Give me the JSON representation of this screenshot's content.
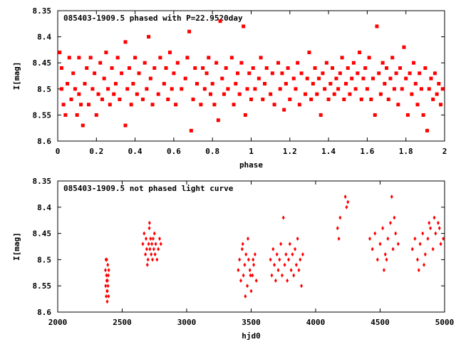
{
  "colors": {
    "points": "#ff0000",
    "axes": "#000000",
    "background": "#ffffff"
  },
  "chart_data": [
    {
      "type": "scatter",
      "title": "085403-1909.5 phased with P=22.9520day",
      "xlabel": "phase",
      "ylabel": "I[mag]",
      "xlim": [
        0,
        2
      ],
      "ylim": [
        8.35,
        8.6
      ],
      "y_inverted": true,
      "x_ticks": [
        0,
        0.2,
        0.4,
        0.6,
        0.8,
        1,
        1.2,
        1.4,
        1.6,
        1.8,
        2
      ],
      "x_tick_labels": [
        "0",
        "0.2",
        "0.4",
        "0.6",
        "0.8",
        "1",
        "1.2",
        "1.4",
        "1.6",
        "1.8",
        "2"
      ],
      "y_ticks": [
        8.35,
        8.4,
        8.45,
        8.5,
        8.55,
        8.6
      ],
      "y_tick_labels": [
        "8.35",
        "8.4",
        "8.45",
        "8.5",
        "8.55",
        "8.6"
      ],
      "grid": false,
      "marker": "filled-square",
      "points": [
        [
          0.01,
          8.43
        ],
        [
          0.02,
          8.46
        ],
        [
          0.02,
          8.5
        ],
        [
          0.03,
          8.53
        ],
        [
          0.04,
          8.55
        ],
        [
          0.05,
          8.49
        ],
        [
          0.06,
          8.44
        ],
        [
          0.07,
          8.52
        ],
        [
          0.08,
          8.47
        ],
        [
          0.09,
          8.5
        ],
        [
          0.1,
          8.55
        ],
        [
          0.11,
          8.44
        ],
        [
          0.11,
          8.51
        ],
        [
          0.12,
          8.53
        ],
        [
          0.13,
          8.57
        ],
        [
          0.14,
          8.49
        ],
        [
          0.15,
          8.46
        ],
        [
          0.16,
          8.53
        ],
        [
          0.17,
          8.44
        ],
        [
          0.18,
          8.5
        ],
        [
          0.19,
          8.47
        ],
        [
          0.2,
          8.55
        ],
        [
          0.21,
          8.51
        ],
        [
          0.22,
          8.45
        ],
        [
          0.23,
          8.52
        ],
        [
          0.24,
          8.48
        ],
        [
          0.25,
          8.43
        ],
        [
          0.26,
          8.5
        ],
        [
          0.27,
          8.53
        ],
        [
          0.28,
          8.46
        ],
        [
          0.29,
          8.51
        ],
        [
          0.3,
          8.49
        ],
        [
          0.31,
          8.44
        ],
        [
          0.32,
          8.52
        ],
        [
          0.33,
          8.47
        ],
        [
          0.35,
          8.41
        ],
        [
          0.35,
          8.57
        ],
        [
          0.36,
          8.5
        ],
        [
          0.37,
          8.46
        ],
        [
          0.38,
          8.53
        ],
        [
          0.39,
          8.49
        ],
        [
          0.4,
          8.44
        ],
        [
          0.41,
          8.51
        ],
        [
          0.42,
          8.47
        ],
        [
          0.44,
          8.52
        ],
        [
          0.45,
          8.45
        ],
        [
          0.46,
          8.5
        ],
        [
          0.47,
          8.4
        ],
        [
          0.48,
          8.48
        ],
        [
          0.49,
          8.53
        ],
        [
          0.5,
          8.46
        ],
        [
          0.52,
          8.51
        ],
        [
          0.53,
          8.44
        ],
        [
          0.55,
          8.49
        ],
        [
          0.56,
          8.46
        ],
        [
          0.57,
          8.52
        ],
        [
          0.58,
          8.43
        ],
        [
          0.59,
          8.5
        ],
        [
          0.6,
          8.47
        ],
        [
          0.61,
          8.53
        ],
        [
          0.62,
          8.45
        ],
        [
          0.64,
          8.5
        ],
        [
          0.66,
          8.48
        ],
        [
          0.67,
          8.44
        ],
        [
          0.68,
          8.39
        ],
        [
          0.69,
          8.58
        ],
        [
          0.7,
          8.52
        ],
        [
          0.71,
          8.46
        ],
        [
          0.72,
          8.49
        ],
        [
          0.74,
          8.53
        ],
        [
          0.75,
          8.46
        ],
        [
          0.76,
          8.5
        ],
        [
          0.77,
          8.47
        ],
        [
          0.78,
          8.44
        ],
        [
          0.79,
          8.51
        ],
        [
          0.8,
          8.49
        ],
        [
          0.81,
          8.53
        ],
        [
          0.82,
          8.45
        ],
        [
          0.83,
          8.56
        ],
        [
          0.84,
          8.37
        ],
        [
          0.85,
          8.48
        ],
        [
          0.86,
          8.51
        ],
        [
          0.87,
          8.46
        ],
        [
          0.88,
          8.5
        ],
        [
          0.9,
          8.44
        ],
        [
          0.91,
          8.53
        ],
        [
          0.92,
          8.49
        ],
        [
          0.93,
          8.47
        ],
        [
          0.94,
          8.51
        ],
        [
          0.95,
          8.45
        ],
        [
          0.96,
          8.38
        ],
        [
          0.97,
          8.55
        ],
        [
          0.98,
          8.5
        ],
        [
          0.99,
          8.47
        ],
        [
          1.0,
          8.52
        ],
        [
          1.01,
          8.46
        ],
        [
          1.02,
          8.5
        ],
        [
          1.04,
          8.48
        ],
        [
          1.05,
          8.44
        ],
        [
          1.06,
          8.52
        ],
        [
          1.07,
          8.49
        ],
        [
          1.08,
          8.46
        ],
        [
          1.1,
          8.51
        ],
        [
          1.11,
          8.47
        ],
        [
          1.12,
          8.53
        ],
        [
          1.14,
          8.45
        ],
        [
          1.15,
          8.5
        ],
        [
          1.16,
          8.47
        ],
        [
          1.17,
          8.54
        ],
        [
          1.18,
          8.49
        ],
        [
          1.19,
          8.46
        ],
        [
          1.2,
          8.52
        ],
        [
          1.22,
          8.48
        ],
        [
          1.23,
          8.5
        ],
        [
          1.24,
          8.45
        ],
        [
          1.25,
          8.53
        ],
        [
          1.26,
          8.47
        ],
        [
          1.28,
          8.51
        ],
        [
          1.29,
          8.48
        ],
        [
          1.3,
          8.43
        ],
        [
          1.31,
          8.52
        ],
        [
          1.32,
          8.49
        ],
        [
          1.33,
          8.46
        ],
        [
          1.34,
          8.51
        ],
        [
          1.35,
          8.48
        ],
        [
          1.36,
          8.55
        ],
        [
          1.37,
          8.47
        ],
        [
          1.38,
          8.5
        ],
        [
          1.39,
          8.45
        ],
        [
          1.4,
          8.52
        ],
        [
          1.41,
          8.49
        ],
        [
          1.42,
          8.46
        ],
        [
          1.43,
          8.51
        ],
        [
          1.44,
          8.48
        ],
        [
          1.45,
          8.5
        ],
        [
          1.46,
          8.47
        ],
        [
          1.47,
          8.44
        ],
        [
          1.48,
          8.52
        ],
        [
          1.49,
          8.49
        ],
        [
          1.5,
          8.46
        ],
        [
          1.51,
          8.51
        ],
        [
          1.52,
          8.48
        ],
        [
          1.53,
          8.45
        ],
        [
          1.54,
          8.5
        ],
        [
          1.55,
          8.47
        ],
        [
          1.56,
          8.43
        ],
        [
          1.57,
          8.52
        ],
        [
          1.58,
          8.48
        ],
        [
          1.59,
          8.46
        ],
        [
          1.6,
          8.5
        ],
        [
          1.61,
          8.44
        ],
        [
          1.62,
          8.52
        ],
        [
          1.63,
          8.48
        ],
        [
          1.64,
          8.55
        ],
        [
          1.65,
          8.38
        ],
        [
          1.66,
          8.47
        ],
        [
          1.67,
          8.51
        ],
        [
          1.68,
          8.45
        ],
        [
          1.69,
          8.49
        ],
        [
          1.7,
          8.46
        ],
        [
          1.71,
          8.52
        ],
        [
          1.72,
          8.48
        ],
        [
          1.73,
          8.44
        ],
        [
          1.74,
          8.5
        ],
        [
          1.75,
          8.47
        ],
        [
          1.76,
          8.53
        ],
        [
          1.77,
          8.46
        ],
        [
          1.78,
          8.5
        ],
        [
          1.79,
          8.42
        ],
        [
          1.8,
          8.48
        ],
        [
          1.81,
          8.55
        ],
        [
          1.82,
          8.47
        ],
        [
          1.83,
          8.51
        ],
        [
          1.84,
          8.45
        ],
        [
          1.85,
          8.49
        ],
        [
          1.86,
          8.53
        ],
        [
          1.87,
          8.47
        ],
        [
          1.88,
          8.5
        ],
        [
          1.89,
          8.55
        ],
        [
          1.9,
          8.46
        ],
        [
          1.91,
          8.58
        ],
        [
          1.92,
          8.5
        ],
        [
          1.93,
          8.48
        ],
        [
          1.94,
          8.52
        ],
        [
          1.95,
          8.47
        ],
        [
          1.96,
          8.51
        ],
        [
          1.97,
          8.49
        ],
        [
          1.98,
          8.53
        ],
        [
          1.99,
          8.5
        ]
      ]
    },
    {
      "type": "scatter",
      "title": "085403-1909.5 not phased light curve",
      "xlabel": "hjd0",
      "ylabel": "I[mag]",
      "xlim": [
        2000,
        5000
      ],
      "ylim": [
        8.35,
        8.6
      ],
      "y_inverted": true,
      "x_ticks": [
        2000,
        2500,
        3000,
        3500,
        4000,
        4500,
        5000
      ],
      "x_tick_labels": [
        "2000",
        "2500",
        "3000",
        "3500",
        "4000",
        "4500",
        "5000"
      ],
      "y_ticks": [
        8.35,
        8.4,
        8.45,
        8.5,
        8.55,
        8.6
      ],
      "y_tick_labels": [
        "8.35",
        "8.4",
        "8.45",
        "8.5",
        "8.55",
        "8.6"
      ],
      "grid": false,
      "marker": "filled-diamond",
      "points": [
        [
          2370,
          8.52
        ],
        [
          2372,
          8.55
        ],
        [
          2374,
          8.5
        ],
        [
          2376,
          8.57
        ],
        [
          2378,
          8.53
        ],
        [
          2380,
          8.5
        ],
        [
          2382,
          8.56
        ],
        [
          2384,
          8.58
        ],
        [
          2386,
          8.54
        ],
        [
          2388,
          8.51
        ],
        [
          2390,
          8.55
        ],
        [
          2392,
          8.53
        ],
        [
          2394,
          8.57
        ],
        [
          2396,
          8.52
        ],
        [
          2380,
          8.54
        ],
        [
          2385,
          8.56
        ],
        [
          2660,
          8.47
        ],
        [
          2670,
          8.45
        ],
        [
          2680,
          8.49
        ],
        [
          2685,
          8.46
        ],
        [
          2690,
          8.48
        ],
        [
          2700,
          8.5
        ],
        [
          2705,
          8.47
        ],
        [
          2710,
          8.44
        ],
        [
          2715,
          8.48
        ],
        [
          2720,
          8.46
        ],
        [
          2725,
          8.49
        ],
        [
          2730,
          8.47
        ],
        [
          2735,
          8.5
        ],
        [
          2740,
          8.46
        ],
        [
          2745,
          8.48
        ],
        [
          2750,
          8.45
        ],
        [
          2755,
          8.49
        ],
        [
          2760,
          8.47
        ],
        [
          2770,
          8.5
        ],
        [
          2780,
          8.48
        ],
        [
          2790,
          8.46
        ],
        [
          2800,
          8.47
        ],
        [
          2695,
          8.51
        ],
        [
          2712,
          8.43
        ],
        [
          3400,
          8.52
        ],
        [
          3410,
          8.5
        ],
        [
          3420,
          8.54
        ],
        [
          3430,
          8.48
        ],
        [
          3440,
          8.53
        ],
        [
          3450,
          8.51
        ],
        [
          3460,
          8.49
        ],
        [
          3470,
          8.55
        ],
        [
          3480,
          8.5
        ],
        [
          3490,
          8.52
        ],
        [
          3500,
          8.56
        ],
        [
          3510,
          8.53
        ],
        [
          3520,
          8.51
        ],
        [
          3530,
          8.49
        ],
        [
          3540,
          8.54
        ],
        [
          3435,
          8.47
        ],
        [
          3455,
          8.57
        ],
        [
          3475,
          8.46
        ],
        [
          3495,
          8.53
        ],
        [
          3515,
          8.5
        ],
        [
          3650,
          8.5
        ],
        [
          3660,
          8.53
        ],
        [
          3670,
          8.48
        ],
        [
          3680,
          8.51
        ],
        [
          3690,
          8.54
        ],
        [
          3700,
          8.49
        ],
        [
          3710,
          8.52
        ],
        [
          3720,
          8.5
        ],
        [
          3730,
          8.47
        ],
        [
          3740,
          8.53
        ],
        [
          3750,
          8.42
        ],
        [
          3760,
          8.51
        ],
        [
          3770,
          8.49
        ],
        [
          3780,
          8.54
        ],
        [
          3790,
          8.5
        ],
        [
          3800,
          8.47
        ],
        [
          3810,
          8.52
        ],
        [
          3820,
          8.49
        ],
        [
          3830,
          8.53
        ],
        [
          3840,
          8.48
        ],
        [
          3850,
          8.51
        ],
        [
          3860,
          8.46
        ],
        [
          3870,
          8.52
        ],
        [
          3880,
          8.5
        ],
        [
          3890,
          8.55
        ],
        [
          3900,
          8.49
        ],
        [
          4170,
          8.44
        ],
        [
          4180,
          8.46
        ],
        [
          4190,
          8.42
        ],
        [
          4230,
          8.38
        ],
        [
          4240,
          8.4
        ],
        [
          4250,
          8.39
        ],
        [
          4420,
          8.46
        ],
        [
          4440,
          8.48
        ],
        [
          4460,
          8.45
        ],
        [
          4480,
          8.5
        ],
        [
          4500,
          8.47
        ],
        [
          4520,
          8.44
        ],
        [
          4540,
          8.49
        ],
        [
          4560,
          8.46
        ],
        [
          4580,
          8.43
        ],
        [
          4600,
          8.48
        ],
        [
          4620,
          8.45
        ],
        [
          4640,
          8.47
        ],
        [
          4590,
          8.38
        ],
        [
          4610,
          8.42
        ],
        [
          4530,
          8.52
        ],
        [
          4550,
          8.5
        ],
        [
          4750,
          8.48
        ],
        [
          4770,
          8.46
        ],
        [
          4790,
          8.5
        ],
        [
          4810,
          8.47
        ],
        [
          4830,
          8.45
        ],
        [
          4850,
          8.49
        ],
        [
          4870,
          8.46
        ],
        [
          4890,
          8.44
        ],
        [
          4910,
          8.48
        ],
        [
          4930,
          8.45
        ],
        [
          4950,
          8.43
        ],
        [
          4970,
          8.47
        ],
        [
          4990,
          8.46
        ],
        [
          4800,
          8.52
        ],
        [
          4840,
          8.51
        ],
        [
          4880,
          8.43
        ],
        [
          4920,
          8.42
        ],
        [
          4960,
          8.44
        ]
      ]
    }
  ]
}
